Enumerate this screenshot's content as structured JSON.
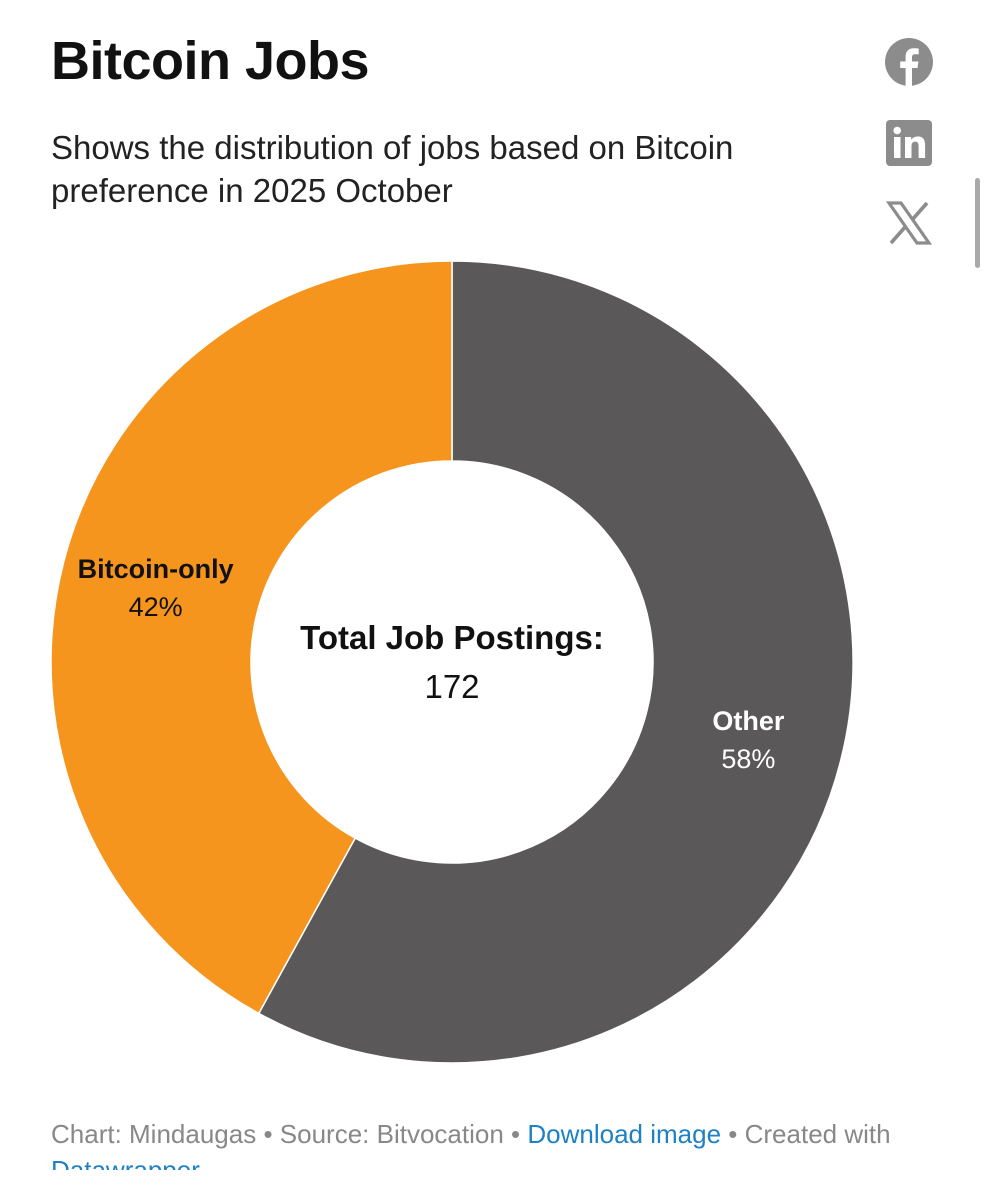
{
  "title": "Bitcoin Jobs",
  "subtitle": "Shows the distribution of jobs based on Bitcoin preference in 2025 October",
  "share": {
    "facebook_icon": "facebook-icon",
    "linkedin_icon": "linkedin-icon",
    "x_icon": "x-icon",
    "icon_color": "#8c8c8c"
  },
  "chart_data": {
    "type": "pie",
    "donut": true,
    "categories": [
      "Other",
      "Bitcoin-only"
    ],
    "values": [
      58,
      42
    ],
    "unit": "%",
    "value_labels": [
      "58%",
      "42%"
    ],
    "colors": [
      "#5a5859",
      "#f5951e"
    ],
    "center_label": "Total Job Postings:",
    "center_value": "172"
  },
  "footer": {
    "chart_credit": "Chart: Mindaugas",
    "sep1": " • ",
    "source": "Source: Bitvocation",
    "sep2": " • ",
    "download_link": "Download image",
    "sep3": " • ",
    "created_with": "Created with ",
    "datawrapper_link": "Datawrapper"
  }
}
